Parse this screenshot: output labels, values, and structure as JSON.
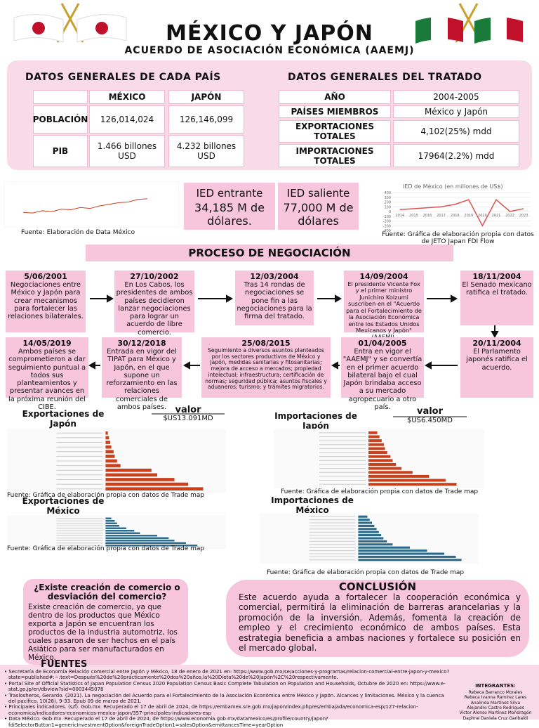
{
  "header": {
    "title": "MÉXICO Y JAPÓN",
    "subtitle": "ACUERDO DE ASOCIACIÓN ECONÓMICA (AAEMJ)"
  },
  "general": {
    "title": "DATOS GENERALES DE CADA PAÍS",
    "columns": [
      "MÉXICO",
      "JAPÓN"
    ],
    "rows": [
      [
        "POBLACIÓN",
        "126,014,024",
        "126,146,099"
      ],
      [
        "PIB",
        "1.466 billones USD",
        "4.232 billones USD"
      ]
    ]
  },
  "treaty": {
    "title": "DATOS GENERALES DEL TRATADO",
    "rows": [
      [
        "AÑO",
        "2004-2005"
      ],
      [
        "PAÍSES MIEMBROS",
        "México y Japón"
      ],
      [
        "EXPORTACIONES TOTALES",
        "4,102(25%) mdd"
      ],
      [
        "IMPORTACIONES TOTALES",
        "17964(2.2%) mdd"
      ]
    ]
  },
  "ied": {
    "in_label": "IED entrante",
    "in_value": "34,185 M de dólares.",
    "out_label": "IED saliente",
    "out_value": "77,000 M de dólares"
  },
  "fdi_chart": {
    "type": "line",
    "color": "#c9401c",
    "values": [
      30,
      28,
      35,
      32,
      40,
      38,
      45,
      42,
      50,
      55,
      60,
      62,
      70,
      72
    ],
    "ylim": [
      0,
      100
    ],
    "source": "Fuente: Elaboración de Data México"
  },
  "mx_ied_chart": {
    "type": "line",
    "title": "IED de México (en millones de US$)",
    "color": "#d9534f",
    "x": [
      2014,
      2015,
      2016,
      2017,
      2018,
      2019,
      2020,
      2021,
      2022,
      2023
    ],
    "values": [
      40,
      60,
      80,
      100,
      150,
      250,
      -300,
      250,
      0,
      60
    ],
    "xlim": [
      2013.5,
      2023.5
    ],
    "ylim": [
      -400,
      400
    ],
    "yticks": [
      400,
      300,
      200,
      100,
      0,
      -100,
      -200,
      -300,
      -400
    ],
    "source": "Fuente: Gráfica de elaboración propia con datos de JETO Japan FDI Flow"
  },
  "process": {
    "title": "PROCESO DE NEGOCIACIÓN",
    "steps": [
      {
        "date": "5/06/2001",
        "text": "Negociaciones entre México y Japón para crear mecanismos para fortalecer las relaciones bilaterales."
      },
      {
        "date": "27/10/2002",
        "text": "En Los Cabos, los presidentes de ambos países decidieron lanzar negociaciones para lograr un acuerdo de libre comercio."
      },
      {
        "date": "12/03/2004",
        "text": "Tras 14 rondas de negociaciones se pone fin a las negociaciones para la firma del tratado."
      },
      {
        "date": "14/09/2004",
        "text": "El presidente Vicente Fox y el primer ministro Junichiro Koizumi suscriben en el \"Acuerdo para el Fortalecimiento de la Asociación Económica entre los Estados Unidos Mexicanos y Japón\" (AAEMJ)."
      },
      {
        "date": "18/11/2004",
        "text": "El Senado mexicano ratifica el tratado."
      },
      {
        "date": "20/11/2004",
        "text": "El Parlamento japonés ratifica el acuerdo."
      },
      {
        "date": "01/04/2005",
        "text": "Entra en vigor el \"AAEMJ\" y se convertía en el primer acuerdo bilateral bajo el cual Japón brindaba acceso a su mercado agropecuario a otro país."
      },
      {
        "date": "25/08/2015",
        "text": "Seguimiento a diversos asuntos planteados por los sectores productivos de México y Japón, medidas sanitarias y fitosanitarias; mejora de acceso a mercados; propiedad intelectual; infraestructura; certificación de normas; seguridad pública; asuntos fiscales y aduaneros; turismo; y trámites migratorios."
      },
      {
        "date": "30/12/2018",
        "text": "Entrada en vigor del TIPAT para México y Japón, en el que supone un reforzamiento en las relaciones comerciales de ambos países."
      },
      {
        "date": "14/05/2019",
        "text": "Ambos países se comprometieron a dar seguimiento puntual a todos sus planteamientos y presentar avances en la próxima reunión del CIBE."
      }
    ]
  },
  "trade": [
    {
      "type": "bar",
      "title": "Exportaciones de Japón",
      "value_title": "valor",
      "value": "$US13.091MD",
      "color": "#c9401c",
      "values": [
        2,
        3,
        4,
        5,
        7,
        8,
        10,
        13,
        40,
        45,
        60,
        72,
        85
      ],
      "xlim": [
        0,
        100
      ],
      "source": "Fuente: Gráfica de elaboración propia con datos de Trade map"
    },
    {
      "type": "bar",
      "title": "Importaciones de Japón",
      "value_title": "valor",
      "value": "$US6.450MD",
      "color": "#c9401c",
      "values": [
        8,
        10,
        12,
        14,
        15,
        17,
        20,
        22,
        25,
        30,
        40,
        55,
        70,
        80
      ],
      "xlim": [
        0,
        100
      ],
      "source": "Fuente: Gráfica de elaboración propia con datos de Trade map"
    },
    {
      "type": "bar",
      "title": "Exportaciones de México",
      "color": "#2a6a8c",
      "values": [
        5,
        8,
        10,
        12,
        18,
        25,
        30,
        45,
        55,
        60,
        70,
        80
      ],
      "xlim": [
        0,
        100
      ],
      "source": "Fuente: Gráfica de elaboración propia con datos de Trade map"
    },
    {
      "type": "bar",
      "title": "Importaciones de México",
      "color": "#2a6a8c",
      "values": [
        8,
        10,
        12,
        14,
        16,
        18,
        20,
        22,
        25,
        30,
        45,
        60,
        75,
        85,
        90
      ],
      "xlim": [
        0,
        100
      ],
      "source": "Fuente: Gráfica de elaboración propia con datos de Trade map"
    }
  ],
  "question": {
    "title": "¿Existe creación de comercio o desviación del comercio?",
    "text": "Existe creación de comercio, ya que dentro de los productos que México exporta a Japón se encuentran los productos de la industria automotriz, los cuales pasaron de ser hechos en el país Asiático para ser manufacturados en México."
  },
  "conclusion": {
    "title": "CONCLUSIÓN",
    "text": "Este acuerdo ayuda a fortalecer la cooperación económica y comercial, permitirá la eliminación de barreras arancelarias y la promoción de la inversión. Además, fomenta la creación de empleo y el crecimiento económico de ambos países. Esta estrategia beneficia a ambas naciones y fortalece su posición en el mercado global."
  },
  "sources": {
    "title": "FUENTES",
    "items": [
      "Secretaría de Economía Relación comercial entre Japón y México, 18 de enero de 2021 en: https://www.gob.mx/se/acciones-y-programas/relacion-comercial-entre-japon-y-mexico?state=published#:~:text=Después%20de%20prácticamente%20dos%20años,la%20Dieta%20de%20Japón%2C%20respectivamente.",
      "Portal Site of Official Statistics of Japan Population Census 2020 Population Census Basic Complete Tabulation on Population and Households, Octubre de 2020 en: https://www.e-stat.go.jp/en/dbview?sid=0003445078",
      "Traslosheros, Gerardo. (2021). La negociación del Acuerdo para el Fortalecimiento de la Asociación Económica entre México y Japón. Alcances y limitaciones. México y la cuenca del pacífico, 10(28), 9-33. Epub 09 de marzo de 2021.",
      "Principales indicadores. (s/f). Gob.mx. Recuperado el 17 de abril de 2024, de https://embamex.sre.gob.mx/japon/index.php/es/embajada/economica-esp/127-relacion-economica/indicadores-economicos-mexico-japon/357-principales-indicadores-esp",
      "Data México. Gob.mx. Recuperado el 17 de abril de 2024, de https://www.economia.gob.mx/datamexico/es/profile/country/japon?fdiSelectorButton1=genericInvestmentOption&foreignTradeOption1=salesOption&emittancesTime=yearOption"
    ]
  },
  "team": {
    "title": "INTEGRANTES:",
    "names": [
      "Rebeca Barranco Morales",
      "Rebeca Ivanna Ramírez Lares",
      "Analinda Martínez Silva",
      "Alejandro Castro Rodrigues",
      "Victor Alonso Martínez Mondragón",
      "Daphne Daniela Cruz Garibaldi"
    ]
  }
}
